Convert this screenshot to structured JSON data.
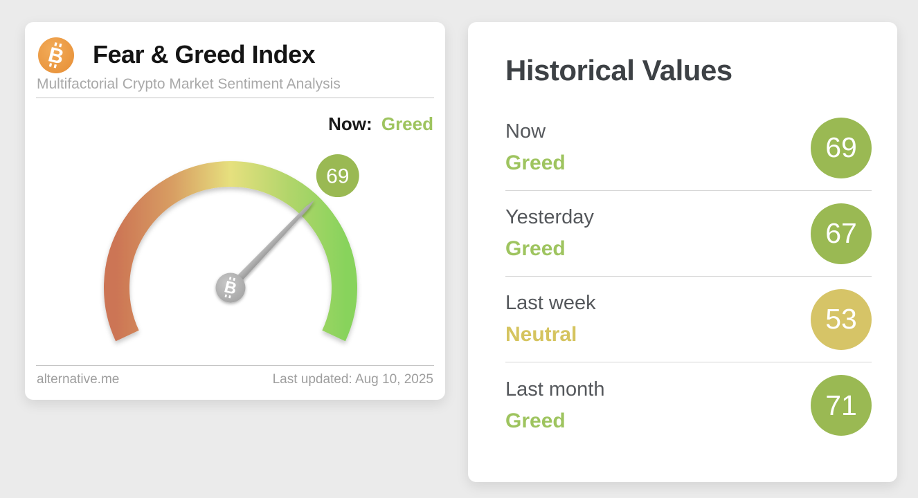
{
  "fng_card": {
    "title": "Fear & Greed Index",
    "subtitle": "Multifactorial Crypto Market Sentiment Analysis",
    "now_label": "Now:",
    "now_classification": "Greed",
    "footer_source": "alternative.me",
    "footer_updated": "Last updated: Aug 10, 2025"
  },
  "historical_card": {
    "title": "Historical Values",
    "rows": [
      {
        "label": "Now",
        "classification": "Greed",
        "value": 69,
        "text_color": "#9ec45f",
        "badge_color": "#9ab953"
      },
      {
        "label": "Yesterday",
        "classification": "Greed",
        "value": 67,
        "text_color": "#9ec45f",
        "badge_color": "#9ab953"
      },
      {
        "label": "Last week",
        "classification": "Neutral",
        "value": 53,
        "text_color": "#d5c45f",
        "badge_color": "#d6c467"
      },
      {
        "label": "Last month",
        "classification": "Greed",
        "value": 71,
        "text_color": "#9ec45f",
        "badge_color": "#9ab953"
      }
    ]
  },
  "chart_data": {
    "type": "gauge",
    "title": "Fear & Greed Index",
    "min": 0,
    "max": 100,
    "value": 69,
    "classification": "Greed",
    "gauge_span_degrees": 230,
    "scale_gradient": [
      "#cc7454",
      "#d89e63",
      "#e6e07e",
      "#b2d56b",
      "#88d35c"
    ],
    "value_badge_color": "#9ab953",
    "needle_color": "#a9a9a9",
    "classification_colors": {
      "greed_text": "#9ec45f",
      "neutral_text": "#d5c45f",
      "greed_badge": "#9ab953",
      "neutral_badge": "#d6c467"
    },
    "brand_color_bitcoin": "#ec9c41"
  }
}
